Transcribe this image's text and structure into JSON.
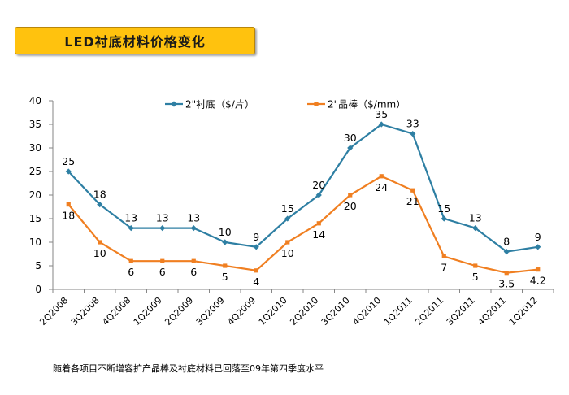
{
  "title": "LED衬底材料价格变化",
  "footnote": "随着各项目不断增容扩产晶棒及衬底材料已回落至09年第四季度水平",
  "chart_data": {
    "type": "line",
    "categories": [
      "2Q2008",
      "3Q2008",
      "4Q2008",
      "1Q2009",
      "2Q2009",
      "3Q2009",
      "4Q2009",
      "1Q2010",
      "2Q2010",
      "3Q2010",
      "4Q2010",
      "1Q2011",
      "2Q2011",
      "3Q2011",
      "4Q2011",
      "1Q2012"
    ],
    "ylim": [
      0,
      40
    ],
    "yticks": [
      0,
      5,
      10,
      15,
      20,
      25,
      30,
      35,
      40
    ],
    "grid": false,
    "legend_position": "top",
    "series": [
      {
        "name": "2\"衬底（$/片）",
        "color": "#2e7fa3",
        "marker": "diamond",
        "values": [
          25,
          18,
          13,
          13,
          13,
          10,
          9,
          15,
          20,
          30,
          35,
          33,
          15,
          13,
          8,
          9
        ],
        "labels": [
          "25",
          "18",
          "13",
          "13",
          "13",
          "10",
          "9",
          "15",
          "20",
          "30",
          "35",
          "33",
          "15",
          "13",
          "8",
          "9"
        ]
      },
      {
        "name": "2\"晶棒（$/mm）",
        "color": "#f07f21",
        "marker": "square",
        "values": [
          18,
          10,
          6,
          6,
          6,
          5,
          4,
          10,
          14,
          20,
          24,
          21,
          7,
          5,
          3.5,
          4.2
        ],
        "labels": [
          "18",
          "10",
          "6",
          "6",
          "6",
          "5",
          "4",
          "10",
          "14",
          "20",
          "24",
          "21",
          "7",
          "5",
          "3.5",
          "4.2"
        ]
      }
    ]
  }
}
